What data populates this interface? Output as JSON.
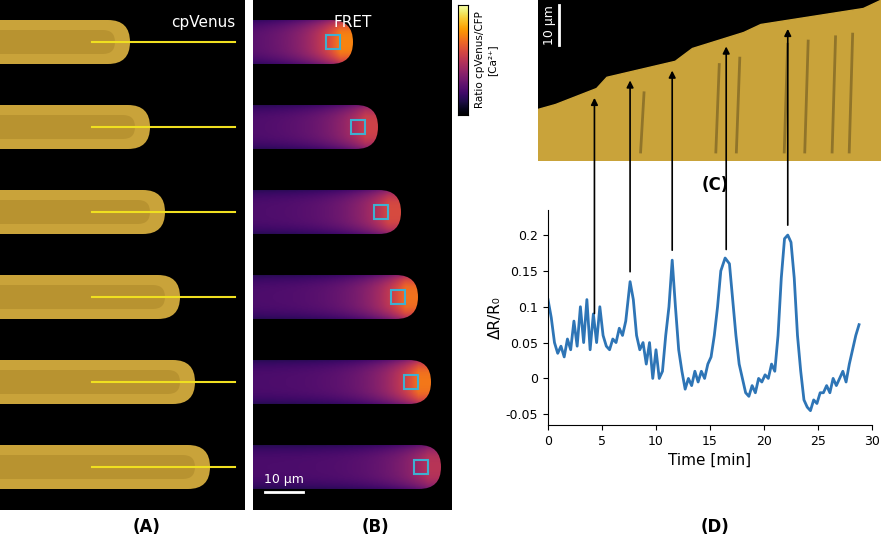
{
  "panels": [
    {
      "label": "(A)",
      "title": "cpVenus"
    },
    {
      "label": "(B)",
      "title": "FRET",
      "colorbar_label": "Ratio cpVenus/CFP",
      "colorbar_unit": "[Ca²⁺]",
      "scale_bar": "10 μm"
    },
    {
      "label": "(C)",
      "scale_bar": "10 μm"
    },
    {
      "label": "(D)"
    }
  ],
  "chart_data": {
    "type": "line",
    "color": "#2e75b6",
    "x_label": "Time [min]",
    "y_label": "ΔR/R₀",
    "x": [
      0,
      0.3,
      0.6,
      0.9,
      1.2,
      1.5,
      1.8,
      2.1,
      2.4,
      2.7,
      3.0,
      3.3,
      3.6,
      3.9,
      4.2,
      4.5,
      4.8,
      5.1,
      5.4,
      5.7,
      6.0,
      6.3,
      6.6,
      6.9,
      7.2,
      7.6,
      7.9,
      8.2,
      8.5,
      8.8,
      9.1,
      9.4,
      9.7,
      10.0,
      10.3,
      10.6,
      10.9,
      11.2,
      11.5,
      11.8,
      12.1,
      12.4,
      12.7,
      13.0,
      13.3,
      13.6,
      13.9,
      14.2,
      14.5,
      14.8,
      15.1,
      15.4,
      15.7,
      16.0,
      16.4,
      16.8,
      17.1,
      17.4,
      17.7,
      18.0,
      18.3,
      18.6,
      18.9,
      19.2,
      19.5,
      19.8,
      20.1,
      20.4,
      20.7,
      21.0,
      21.3,
      21.6,
      21.9,
      22.2,
      22.5,
      22.8,
      23.1,
      23.4,
      23.7,
      24.0,
      24.3,
      24.6,
      24.9,
      25.2,
      25.5,
      25.8,
      26.1,
      26.4,
      26.7,
      27.0,
      27.3,
      27.6,
      27.9,
      28.2,
      28.5,
      28.8
    ],
    "values": [
      0.11,
      0.085,
      0.05,
      0.035,
      0.045,
      0.03,
      0.055,
      0.04,
      0.08,
      0.045,
      0.1,
      0.05,
      0.11,
      0.04,
      0.09,
      0.05,
      0.1,
      0.06,
      0.045,
      0.04,
      0.055,
      0.05,
      0.07,
      0.06,
      0.08,
      0.135,
      0.11,
      0.06,
      0.04,
      0.05,
      0.02,
      0.05,
      0.0,
      0.04,
      0.0,
      0.01,
      0.06,
      0.1,
      0.165,
      0.1,
      0.04,
      0.01,
      -0.015,
      0.0,
      -0.01,
      0.01,
      -0.005,
      0.01,
      0.0,
      0.02,
      0.03,
      0.06,
      0.1,
      0.15,
      0.168,
      0.16,
      0.11,
      0.06,
      0.02,
      0.0,
      -0.02,
      -0.025,
      -0.01,
      -0.02,
      0.0,
      -0.005,
      0.005,
      0.0,
      0.02,
      0.01,
      0.06,
      0.14,
      0.195,
      0.2,
      0.19,
      0.14,
      0.06,
      0.01,
      -0.03,
      -0.04,
      -0.045,
      -0.03,
      -0.035,
      -0.02,
      -0.02,
      -0.01,
      -0.02,
      0.0,
      -0.01,
      0.0,
      0.01,
      -0.005,
      0.02,
      0.04,
      0.06,
      0.075
    ],
    "peak_times": [
      4.3,
      7.6,
      11.5,
      16.5,
      22.2
    ],
    "xlim": [
      0,
      30
    ],
    "xticks": [
      0,
      5,
      10,
      15,
      20,
      25,
      30
    ],
    "ylim": [
      -0.065,
      0.235
    ],
    "yticks": [
      -0.05,
      0,
      0.05,
      0.1,
      0.15,
      0.2
    ],
    "grid": false
  }
}
